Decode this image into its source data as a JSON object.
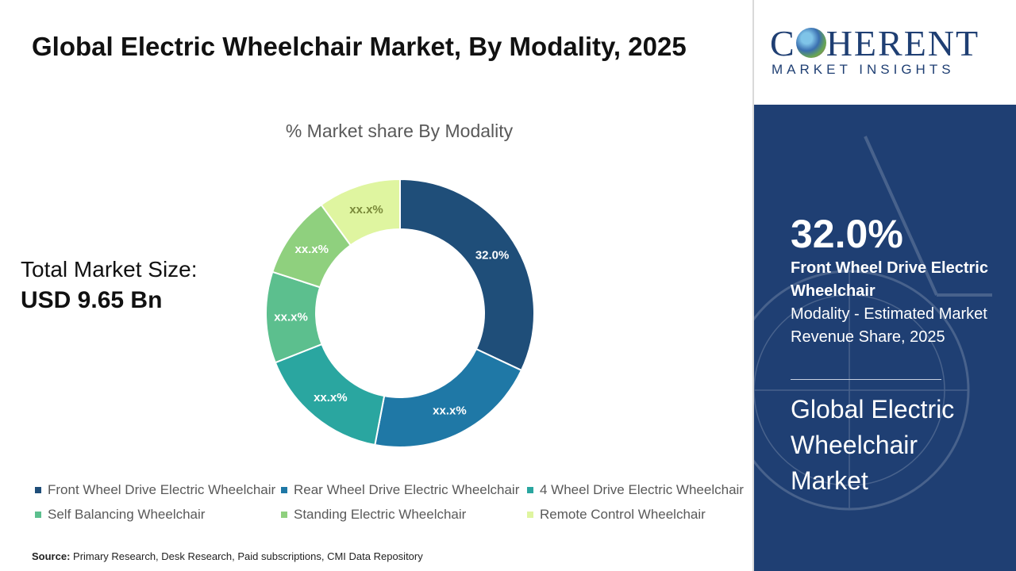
{
  "title": "Global Electric Wheelchair Market, By Modality, 2025",
  "total_market": {
    "label": "Total Market Size:",
    "value": "USD 9.65 Bn"
  },
  "chart_data": {
    "type": "pie",
    "title": "% Market share By Modality",
    "categories": [
      "Front Wheel Drive Electric Wheelchair",
      "Rear Wheel Drive Electric Wheelchair",
      "4 Wheel Drive Electric Wheelchair",
      "Self Balancing Wheelchair",
      "Standing Electric Wheelchair",
      "Remote Control Wheelchair"
    ],
    "values": [
      32.0,
      21.0,
      16.0,
      11.0,
      10.0,
      10.0
    ],
    "data_labels": [
      "32.0%",
      "xx.x%",
      "xx.x%",
      "xx.x%",
      "xx.x%",
      "xx.x%"
    ],
    "colors": [
      "#1f4e79",
      "#1f78a6",
      "#2aa6a0",
      "#5cbf8e",
      "#8fd07e",
      "#dff5a0"
    ],
    "legend_position": "bottom"
  },
  "source": {
    "label": "Source:",
    "text": "Primary Research, Desk Research, Paid subscriptions, CMI Data Repository"
  },
  "logo": {
    "main": "COHERENT",
    "main_left": "C",
    "main_right": "HERENT",
    "sub": "MARKET INSIGHTS"
  },
  "highlight": {
    "percent": "32.0%",
    "segment": "Front Wheel Drive Electric Wheelchair",
    "description": "Modality - Estimated Market Revenue Share, 2025",
    "market": "Global Electric Wheelchair Market"
  },
  "colors": {
    "panel": "#1f3f73",
    "brand": "#1f3f73"
  }
}
